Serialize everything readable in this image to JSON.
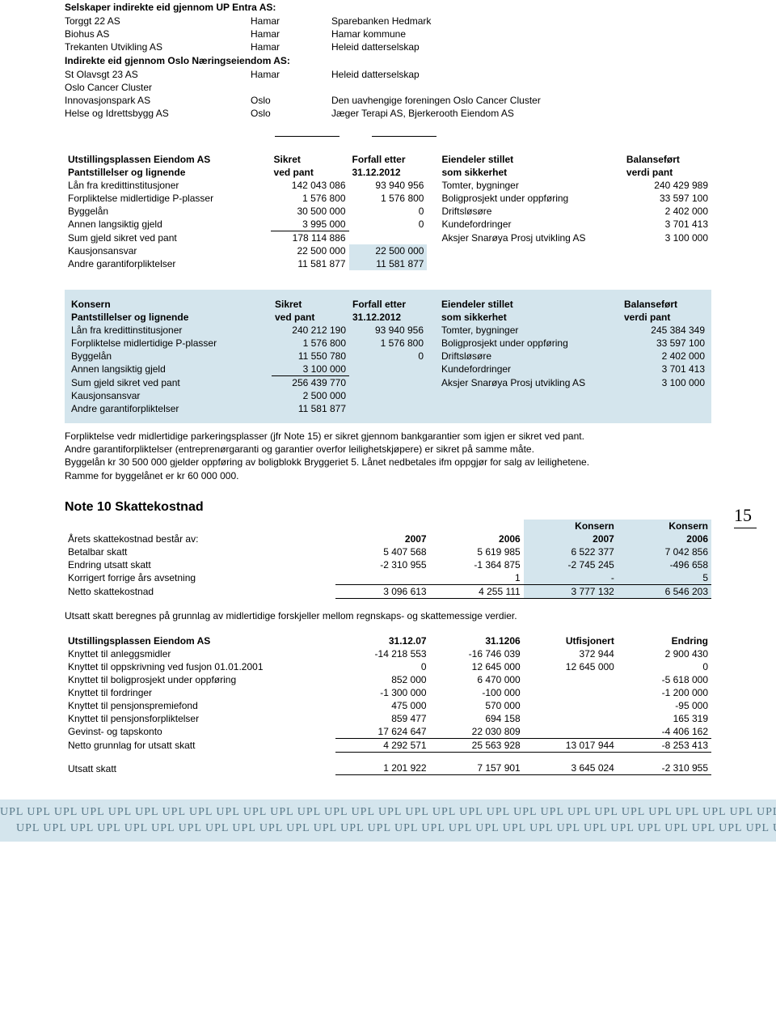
{
  "colors": {
    "highlight_bg": "#d4e5ed",
    "text": "#000000",
    "page_bg": "#ffffff",
    "footer_text": "#5a7a8a"
  },
  "companies": {
    "header1": "Selskaper indirekte eid gjennom UP Entra AS:",
    "rows1": [
      {
        "name": "Torggt 22 AS",
        "loc": "Hamar",
        "desc": "Sparebanken Hedmark"
      },
      {
        "name": "Biohus AS",
        "loc": "Hamar",
        "desc": "Hamar kommune"
      },
      {
        "name": "Trekanten Utvikling AS",
        "loc": "Hamar",
        "desc": "Heleid datterselskap"
      }
    ],
    "header2": "Indirekte eid gjennom Oslo Næringseiendom AS:",
    "rows2": [
      {
        "name": "St Olavsgt 23 AS",
        "loc": "Hamar",
        "desc": "Heleid datterselskap"
      },
      {
        "name": "Oslo Cancer Cluster",
        "loc": "",
        "desc": ""
      },
      {
        "name": "Innovasjonspark AS",
        "loc": "Oslo",
        "desc": "Den uavhengige foreningen Oslo Cancer Cluster"
      },
      {
        "name": "Helse og Idrettsbygg AS",
        "loc": "Oslo",
        "desc": "Jæger Terapi AS, Bjerkerooth Eiendom AS"
      }
    ]
  },
  "pant1": {
    "title": "Utstillingsplassen Eiendom AS",
    "h_left": "Pantstillelser og lignende",
    "h_sikret1": "Sikret",
    "h_sikret2": "ved pant",
    "h_forfall1": "Forfall etter",
    "h_forfall2": "31.12.2012",
    "h_eien1": "Eiendeler stillet",
    "h_eien2": "som sikkerhet",
    "h_bal1": "Balanseført",
    "h_bal2": "verdi pant",
    "rows": [
      {
        "l": "Lån fra kredittinstitusjoner",
        "a": "142 043 086",
        "b": "93 940 956",
        "c": "Tomter, bygninger",
        "d": "240 429 989"
      },
      {
        "l": "Forpliktelse midlertidige P-plasser",
        "a": "1 576 800",
        "b": "1 576 800",
        "c": "Boligprosjekt under oppføring",
        "d": "33 597 100"
      },
      {
        "l": "Byggelån",
        "a": "30 500 000",
        "b": "0",
        "c": "Driftsløsøre",
        "d": "2 402 000"
      },
      {
        "l": "Annen langsiktig gjeld",
        "a": "3 995 000",
        "b": "0",
        "c": "Kundefordringer",
        "d": "3 701 413",
        "ul": true
      },
      {
        "l": "Sum gjeld sikret ved pant",
        "a": "178 114 886",
        "b": "",
        "c": "Aksjer Snarøya Prosj utvikling AS",
        "d": "3 100 000"
      },
      {
        "l": "Kausjonsansvar",
        "a": "22 500 000",
        "b": "22 500 000",
        "c": "",
        "d": "",
        "hb": true
      },
      {
        "l": "Andre garantiforpliktelser",
        "a": "11 581 877",
        "b": "11 581 877",
        "c": "",
        "d": "",
        "hb": true
      }
    ]
  },
  "pant2": {
    "title": "Konsern",
    "rows": [
      {
        "l": "Lån fra kredittinstitusjoner",
        "a": "240 212 190",
        "b": "93 940 956",
        "c": "Tomter, bygninger",
        "d": "245 384 349"
      },
      {
        "l": "Forpliktelse midlertidige P-plasser",
        "a": "1 576 800",
        "b": "1 576 800",
        "c": "Boligprosjekt under oppføring",
        "d": "33 597 100"
      },
      {
        "l": "Byggelån",
        "a": "11 550 780",
        "b": "0",
        "c": "Driftsløsøre",
        "d": "2 402 000"
      },
      {
        "l": "Annen langsiktig gjeld",
        "a": "3 100 000",
        "b": "",
        "c": "Kundefordringer",
        "d": "3 701 413",
        "ul": true
      },
      {
        "l": "Sum gjeld sikret ved pant",
        "a": "256 439 770",
        "b": "",
        "c": "Aksjer Snarøya Prosj utvikling AS",
        "d": "3 100 000"
      },
      {
        "l": "Kausjonsansvar",
        "a": "2 500 000",
        "b": "",
        "c": "",
        "d": ""
      },
      {
        "l": "Andre garantiforpliktelser",
        "a": "11 581 877",
        "b": "",
        "c": "",
        "d": ""
      }
    ]
  },
  "page_number": "15",
  "notes": {
    "p1": "Forpliktelse vedr midlertidige parkeringsplasser (jfr Note 15) er sikret gjennom bankgarantier som igjen er sikret ved pant.",
    "p2": "Andre garantiforpliktelser (entreprenørgaranti og garantier overfor leilighetskjøpere) er sikret på samme måte.",
    "p3": "Byggelån kr 30 500 000 gjelder oppføring av boligblokk Bryggeriet 5. Lånet nedbetales ifm oppgjør for salg av leilighetene.",
    "p4": "Ramme for byggelånet er kr 60 000 000."
  },
  "note10": {
    "title": "Note 10    Skattekostnad",
    "sub": "Årets skattekostnad består av:",
    "h2007": "2007",
    "h2006": "2006",
    "hk2007": "Konsern\n2007",
    "hk2006": "Konsern\n2006",
    "k_label": "Konsern",
    "rows": [
      {
        "l": "Betalbar skatt",
        "a": "5 407 568",
        "b": "5 619 985",
        "c": "6 522 377",
        "d": "7 042 856"
      },
      {
        "l": "Endring utsatt skatt",
        "a": "-2 310 955",
        "b": "-1 364 875",
        "c": "-2 745 245",
        "d": "-496 658"
      },
      {
        "l": "Korrigert forrige års avsetning",
        "a": "",
        "b": "1",
        "c": "-",
        "d": "5"
      },
      {
        "l": "Netto skattekostnad",
        "a": "3 096 613",
        "b": "4 255 111",
        "c": "3 777 132",
        "d": "6 546 203",
        "sum": true
      }
    ],
    "note": "Utsatt skatt beregnes på grunnlag av midlertidige forskjeller mellom regnskaps- og skattemessige verdier."
  },
  "utsatt": {
    "title": "Utstillingsplassen Eiendom AS",
    "h1": "31.12.07",
    "h2": "31.1206",
    "h3": "Utfisjonert",
    "h4": "Endring",
    "rows": [
      {
        "l": "Knyttet til anleggsmidler",
        "a": "-14 218 553",
        "b": "-16 746 039",
        "c": "372 944",
        "d": "2 900 430"
      },
      {
        "l": "Knyttet til oppskrivning ved fusjon 01.01.2001",
        "a": "0",
        "b": "12 645 000",
        "c": "12 645 000",
        "d": "0"
      },
      {
        "l": "Knyttet til boligprosjekt under oppføring",
        "a": "852 000",
        "b": "6 470 000",
        "c": "",
        "d": "-5 618 000"
      },
      {
        "l": "Knyttet til fordringer",
        "a": "-1 300 000",
        "b": "-100 000",
        "c": "",
        "d": "-1 200 000"
      },
      {
        "l": "Knyttet til pensjonspremiefond",
        "a": "475 000",
        "b": "570 000",
        "c": "",
        "d": "-95 000"
      },
      {
        "l": "Knyttet til pensjonsforpliktelser",
        "a": "859 477",
        "b": "694 158",
        "c": "",
        "d": "165 319"
      },
      {
        "l": "Gevinst- og tapskonto",
        "a": "17 624 647",
        "b": "22 030 809",
        "c": "",
        "d": "-4 406 162"
      },
      {
        "l": "Netto grunnlag for utsatt skatt",
        "a": "4 292 571",
        "b": "25 563 928",
        "c": "13 017 944",
        "d": "-8 253 413",
        "sum": true
      }
    ],
    "final": {
      "l": "Utsatt skatt",
      "a": "1 201 922",
      "b": "7 157 901",
      "c": "3 645 024",
      "d": "-2 310 955"
    }
  },
  "footer_token": "UPL"
}
